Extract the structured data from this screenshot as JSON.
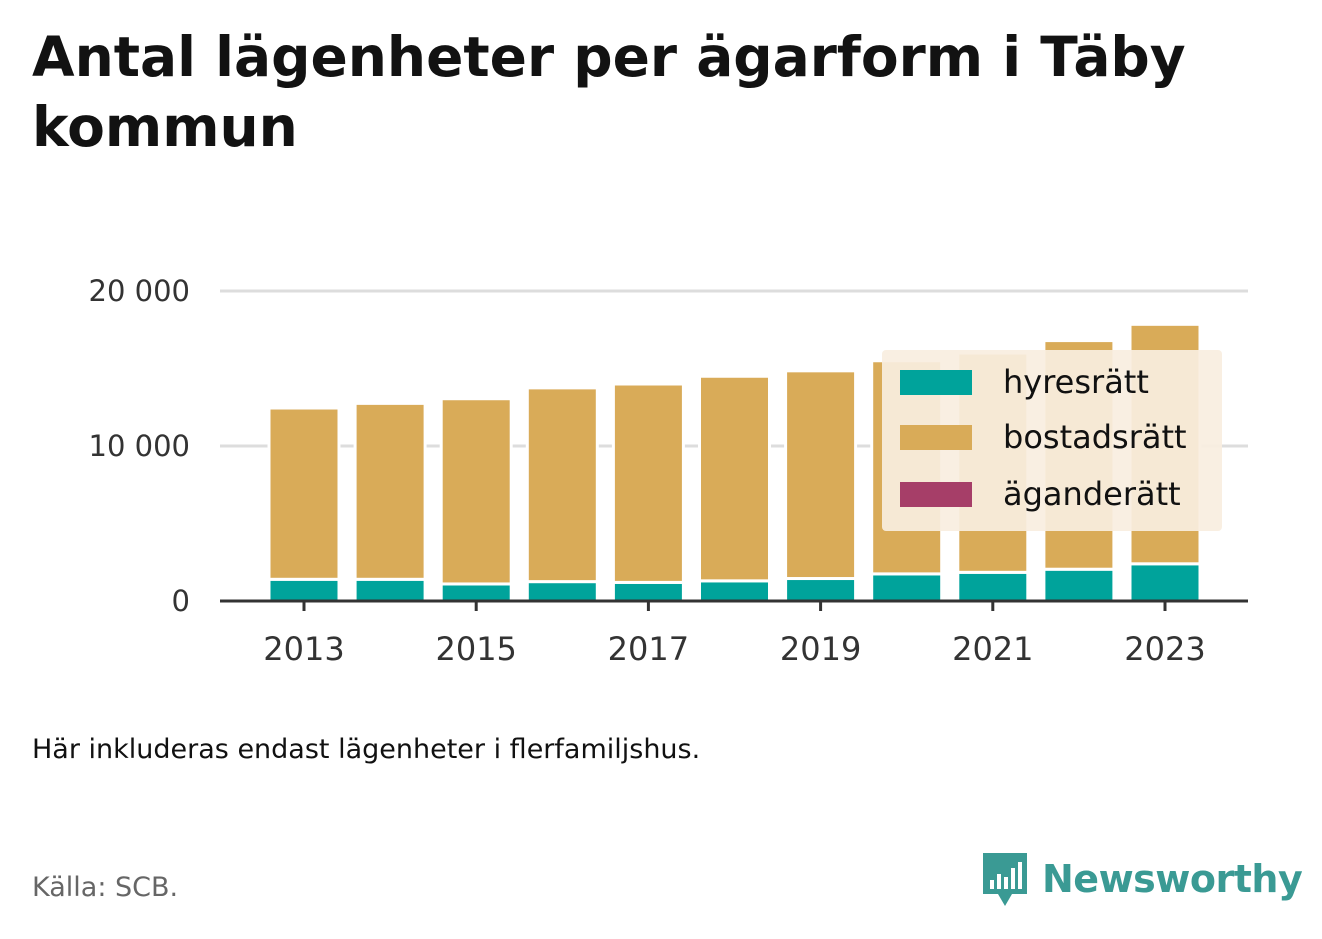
{
  "title": "Antal lägenheter per ägarform i Täby kommun",
  "note": "Här inkluderas endast lägenheter i flerfamiljshus.",
  "source": "Källa: SCB.",
  "brand": {
    "name": "Newsworthy",
    "color": "#3a9a94",
    "icon": "bar-chart-speech-bubble-icon"
  },
  "chart_data": {
    "type": "bar",
    "stacked": true,
    "categories": [
      "2013",
      "2014",
      "2015",
      "2016",
      "2017",
      "2018",
      "2019",
      "2020",
      "2021",
      "2022",
      "2023"
    ],
    "x_tick_labels": [
      "2013",
      "2015",
      "2017",
      "2019",
      "2021",
      "2023"
    ],
    "series": [
      {
        "name": "hyresrätt",
        "color": "#00a39b",
        "values": [
          1400,
          1400,
          1100,
          1250,
          1200,
          1300,
          1450,
          1750,
          1850,
          2050,
          2400
        ]
      },
      {
        "name": "bostadsrätt",
        "color": "#d9ab58",
        "values": [
          11050,
          11350,
          11950,
          12500,
          12800,
          13200,
          13400,
          13750,
          14150,
          14750,
          15450
        ]
      },
      {
        "name": "äganderätt",
        "color": "#a63e68",
        "values": [
          0,
          0,
          0,
          0,
          0,
          0,
          0,
          0,
          0,
          0,
          0
        ]
      }
    ],
    "y_ticks": [
      "0",
      "10 000",
      "20 000"
    ],
    "y_tick_values": [
      0,
      10000,
      20000
    ],
    "ylim": [
      0,
      20000
    ],
    "grid": true,
    "legend_position": "right, overlapping top"
  }
}
